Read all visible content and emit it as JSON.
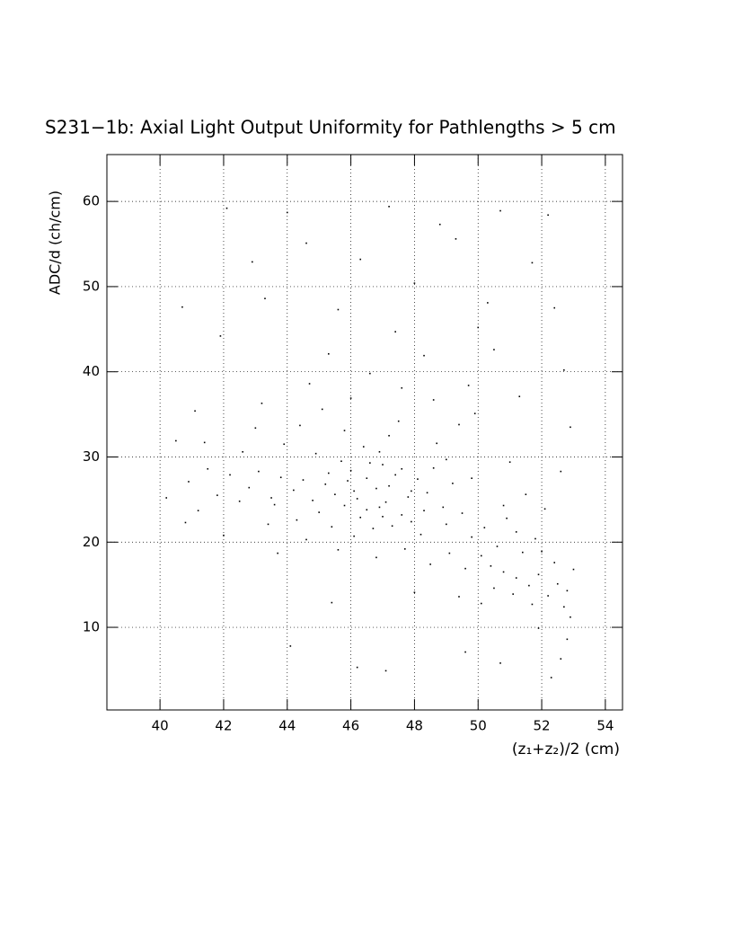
{
  "chart_data": {
    "type": "scatter",
    "title": "S231−1b: Axial Light Output Uniformity for Pathlengths > 5 cm",
    "x_label": "(z₁+z₂)/2 (cm)",
    "y_label": "ADC/d (ch/cm)",
    "color": "#000000",
    "grid": true,
    "xlim": [
      38.33,
      54.54
    ],
    "ylim": [
      0.3,
      65.5
    ],
    "xticks": [
      40,
      42,
      44,
      46,
      48,
      50,
      52,
      54
    ],
    "yticks": [
      10,
      20,
      30,
      40,
      50,
      60
    ],
    "x": [
      46.2,
      46.8,
      47.1,
      45.9,
      46.5,
      47.4,
      45.5,
      46.0,
      47.8,
      46.3,
      47.0,
      45.2,
      48.1,
      44.8,
      46.7,
      47.6,
      45.7,
      48.4,
      44.5,
      46.9,
      47.3,
      45.0,
      48.6,
      44.2,
      46.4,
      47.9,
      43.8,
      48.9,
      45.4,
      47.2,
      43.5,
      49.2,
      44.9,
      46.1,
      48.2,
      43.1,
      49.5,
      42.8,
      45.8,
      48.7,
      42.5,
      49.8,
      44.3,
      47.5,
      42.2,
      50.1,
      43.9,
      49.0,
      41.8,
      50.4,
      41.5,
      50.8,
      45.1,
      49.4,
      41.2,
      51.2,
      43.4,
      51.6,
      40.9,
      51.9,
      52.2,
      50.6,
      52.5,
      51.4,
      52.7,
      50.2,
      52.9,
      51.1,
      52.4,
      49.6,
      52.8,
      52.6,
      52.3,
      51.8,
      50.9,
      52.1,
      49.1,
      48.5,
      47.7,
      51.5,
      52.6,
      52.9,
      52.7,
      51.3,
      50.5,
      49.7,
      48.3,
      47.4,
      46.6,
      45.3,
      44.7,
      43.2,
      52.4,
      51.7,
      50.3,
      49.3,
      48.0,
      46.3,
      45.6,
      44.0,
      43.3,
      42.1,
      52.2,
      50.7,
      47.2,
      44.6,
      41.9,
      41.1,
      40.5,
      40.7,
      42.9,
      48.8,
      50.0,
      51.0,
      49.9,
      48.6,
      47.6,
      46.0,
      44.4,
      43.0,
      44.1,
      45.4,
      46.2,
      47.1,
      49.6,
      50.7,
      51.9,
      43.7,
      44.6,
      45.6,
      46.8,
      48.0,
      49.4,
      50.1,
      40.2,
      40.8,
      41.4,
      42.0,
      42.6,
      43.6,
      46.5,
      46.9,
      47.2,
      46.1,
      47.6,
      45.8,
      46.6,
      47.9,
      45.3,
      47.0,
      52.0,
      51.2,
      50.5,
      52.8,
      53.0,
      51.7,
      50.8,
      49.8,
      49.0,
      48.3
    ],
    "values": [
      25.1,
      26.3,
      24.7,
      27.2,
      23.8,
      27.9,
      25.6,
      28.4,
      25.3,
      22.9,
      29.1,
      26.8,
      27.4,
      24.9,
      21.6,
      23.2,
      29.5,
      25.8,
      27.3,
      30.6,
      21.9,
      23.5,
      28.7,
      26.1,
      31.2,
      22.4,
      27.6,
      24.1,
      21.8,
      32.5,
      25.2,
      26.9,
      30.4,
      20.7,
      20.9,
      28.3,
      23.4,
      26.4,
      33.1,
      31.6,
      24.8,
      20.6,
      22.6,
      34.2,
      27.9,
      18.4,
      31.5,
      29.7,
      25.5,
      17.2,
      28.6,
      16.5,
      35.6,
      33.8,
      23.7,
      15.8,
      22.1,
      14.9,
      27.1,
      16.2,
      13.7,
      19.5,
      15.1,
      18.8,
      12.4,
      21.7,
      11.2,
      13.9,
      17.6,
      16.9,
      8.6,
      6.3,
      4.1,
      20.4,
      22.8,
      23.9,
      18.7,
      17.4,
      19.2,
      25.6,
      28.3,
      33.5,
      40.2,
      37.1,
      42.6,
      38.4,
      41.9,
      44.7,
      39.8,
      42.1,
      38.6,
      36.3,
      47.5,
      52.8,
      48.1,
      55.6,
      50.4,
      53.2,
      47.3,
      58.7,
      48.6,
      59.2,
      58.4,
      58.9,
      59.4,
      55.1,
      44.2,
      35.4,
      31.9,
      47.6,
      52.9,
      57.3,
      45.2,
      29.4,
      35.1,
      36.7,
      38.1,
      36.9,
      33.7,
      33.4,
      7.8,
      12.9,
      5.3,
      4.9,
      7.1,
      5.8,
      9.9,
      18.7,
      20.3,
      19.1,
      18.2,
      14.1,
      13.6,
      12.8,
      25.2,
      22.3,
      31.7,
      20.8,
      30.6,
      24.4,
      27.5,
      24.1,
      26.6,
      26.0,
      28.6,
      24.3,
      29.3,
      26.0,
      28.1,
      23.0,
      18.9,
      21.2,
      14.6,
      14.3,
      16.8,
      12.7,
      24.3,
      27.5,
      22.1,
      23.7
    ]
  }
}
